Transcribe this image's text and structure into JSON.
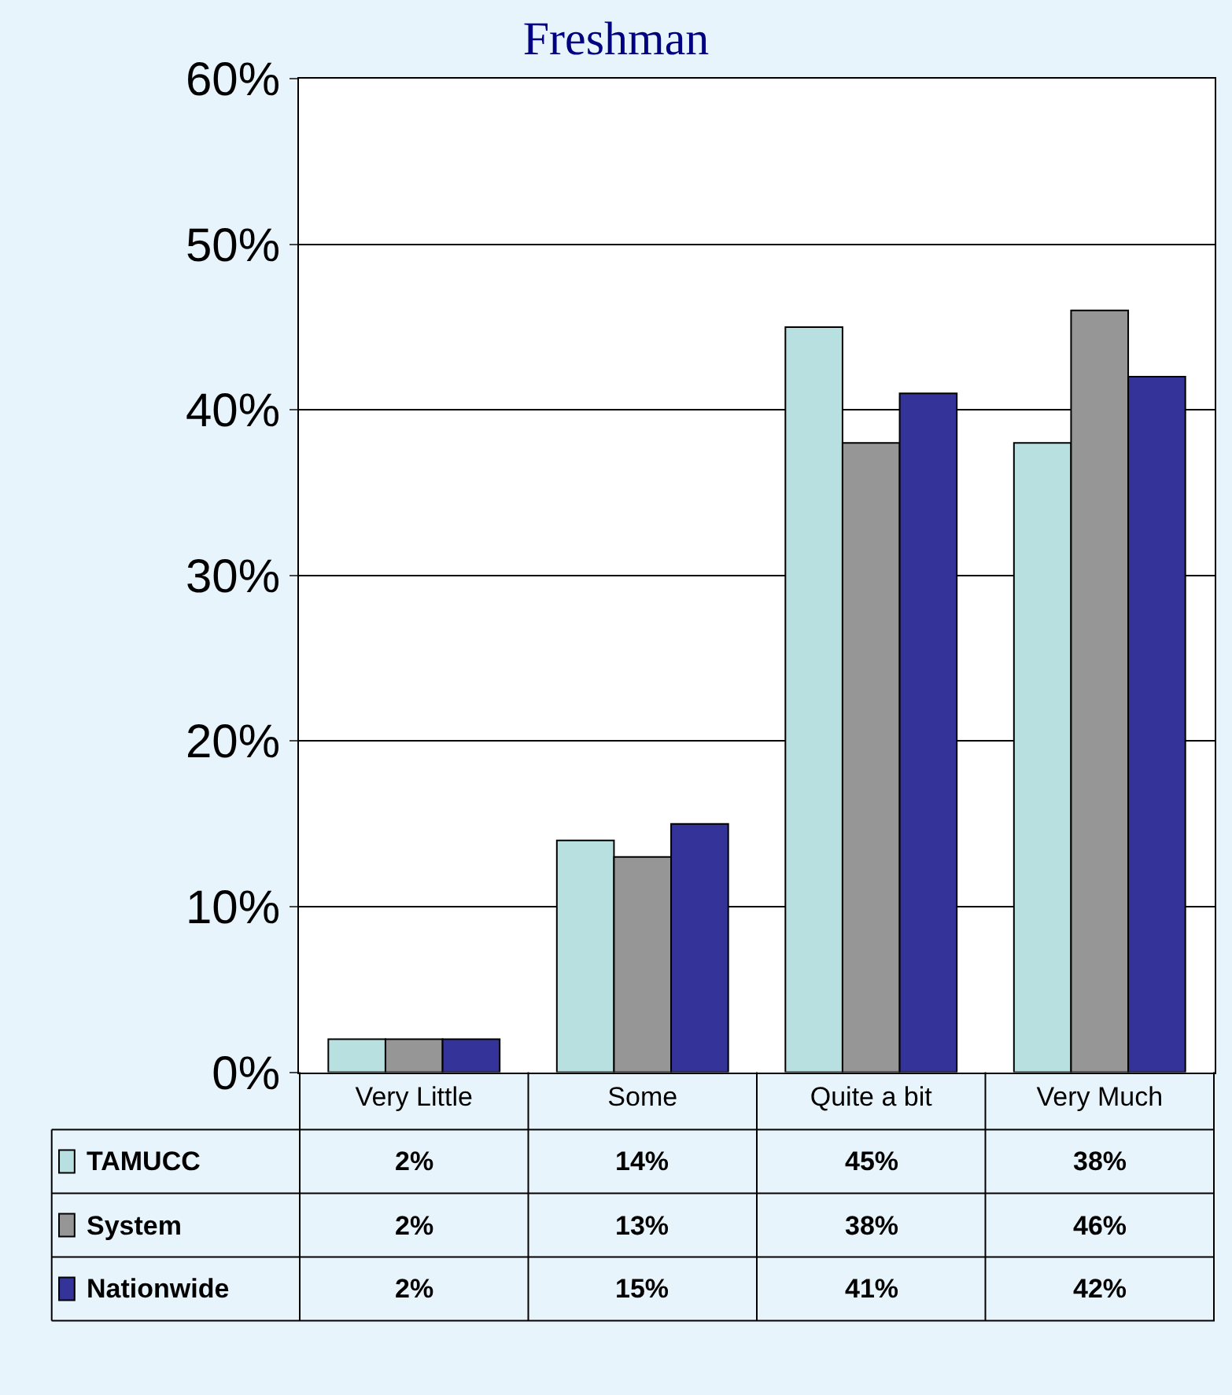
{
  "chart_data": {
    "type": "bar",
    "title": "Freshman",
    "categories": [
      "Very Little",
      "Some",
      "Quite a bit",
      "Very Much"
    ],
    "series": [
      {
        "name": "TAMUCC",
        "color": "#b8e0e0",
        "values": [
          2,
          14,
          45,
          38
        ],
        "value_labels": [
          "2%",
          "14%",
          "45%",
          "38%"
        ]
      },
      {
        "name": "System",
        "color": "#969696",
        "values": [
          2,
          13,
          38,
          46
        ],
        "value_labels": [
          "2%",
          "13%",
          "38%",
          "46%"
        ]
      },
      {
        "name": "Nationwide",
        "color": "#333399",
        "values": [
          2,
          15,
          41,
          42
        ],
        "value_labels": [
          "2%",
          "15%",
          "41%",
          "42%"
        ]
      }
    ],
    "ylim": [
      0,
      60
    ],
    "yticks": [
      {
        "value": 0,
        "label": "0%"
      },
      {
        "value": 10,
        "label": "10%"
      },
      {
        "value": 20,
        "label": "20%"
      },
      {
        "value": 30,
        "label": "30%"
      },
      {
        "value": 40,
        "label": "40%"
      },
      {
        "value": 50,
        "label": "50%"
      },
      {
        "value": 60,
        "label": "60%"
      }
    ],
    "grid": "y",
    "legend": "bottom left"
  }
}
